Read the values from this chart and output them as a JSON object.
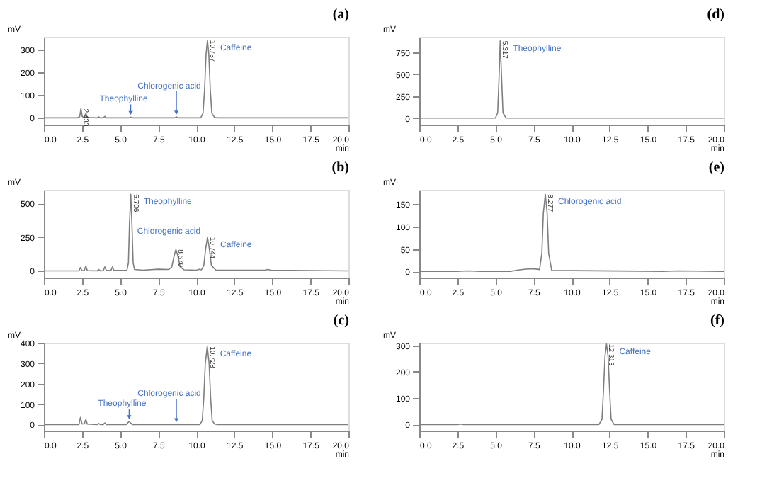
{
  "chart_data": [
    {
      "type": "line",
      "title": "(a)",
      "xlabel": "min",
      "ylabel": "mV",
      "xlim": [
        0,
        20
      ],
      "ylim": [
        -30,
        355
      ],
      "yticks": [
        0,
        100,
        200,
        300
      ],
      "xticks": [
        {
          "value": 0,
          "label": "0.0"
        },
        {
          "value": 2.5,
          "label": "2.5"
        },
        {
          "value": 5,
          "label": "5.0"
        },
        {
          "value": 7.5,
          "label": "7.5"
        },
        {
          "value": 10,
          "label": "10.0"
        },
        {
          "value": 12.5,
          "label": "12.5"
        },
        {
          "value": 15,
          "label": "15.0"
        },
        {
          "value": 17.5,
          "label": "17.5"
        },
        {
          "value": 20,
          "label": "20.0"
        }
      ],
      "x": [
        0,
        2.2,
        2.35,
        2.43,
        2.52,
        2.65,
        2.75,
        2.85,
        3.5,
        3.6,
        3.7,
        3.9,
        4.0,
        4.1,
        5.6,
        5.7,
        5.8,
        8.6,
        8.7,
        8.8,
        10.3,
        10.45,
        10.55,
        10.65,
        10.74,
        10.83,
        10.93,
        11.03,
        11.2,
        11.4,
        20
      ],
      "series": [
        {
          "color": "#7f7f7f",
          "values": [
            0,
            0,
            5,
            40,
            5,
            2,
            20,
            2,
            0,
            4,
            0,
            0,
            6,
            0,
            0,
            3,
            0,
            0,
            4,
            0,
            0,
            20,
            120,
            280,
            340,
            280,
            120,
            20,
            2,
            0,
            0
          ]
        }
      ],
      "annotations": [
        {
          "text": "2.433",
          "x": 2.43,
          "y": 40
        },
        {
          "text": "10.737",
          "x": 10.74,
          "y": 340
        },
        {
          "text": "Theophylline",
          "x": 5.7,
          "y": 3
        },
        {
          "text": "Chlorogenic acid",
          "x": 8.7,
          "y": 4
        },
        {
          "text": "Caffeine",
          "x": 10.74,
          "y": 340
        }
      ]
    },
    {
      "type": "line",
      "title": "(d)",
      "xlabel": "min",
      "ylabel": "mV",
      "xlim": [
        0,
        20
      ],
      "ylim": [
        -75,
        925
      ],
      "yticks": [
        0,
        250,
        500,
        750
      ],
      "xticks": [
        {
          "value": 0,
          "label": "0.0"
        },
        {
          "value": 2.5,
          "label": "2.5"
        },
        {
          "value": 5,
          "label": "5.0"
        },
        {
          "value": 7.5,
          "label": "7.5"
        },
        {
          "value": 10,
          "label": "10.0"
        },
        {
          "value": 12.5,
          "label": "12.5"
        },
        {
          "value": 15,
          "label": "15.0"
        },
        {
          "value": 17.5,
          "label": "17.5"
        },
        {
          "value": 20,
          "label": "20.0"
        }
      ],
      "x": [
        0,
        5.0,
        5.15,
        5.25,
        5.317,
        5.4,
        5.5,
        5.7,
        20
      ],
      "series": [
        {
          "color": "#7f7f7f",
          "values": [
            0,
            0,
            60,
            500,
            878,
            500,
            60,
            0,
            0
          ]
        }
      ],
      "annotations": [
        {
          "text": "5.317",
          "x": 5.317,
          "y": 878
        },
        {
          "text": "Theophylline",
          "x": 5.317,
          "y": 878
        }
      ]
    },
    {
      "type": "line",
      "title": "(b)",
      "xlabel": "min",
      "ylabel": "mV",
      "xlim": [
        0,
        20
      ],
      "ylim": [
        -50,
        600
      ],
      "yticks": [
        0,
        250,
        500
      ],
      "xticks": [
        {
          "value": 0,
          "label": "0.0"
        },
        {
          "value": 2.5,
          "label": "2.5"
        },
        {
          "value": 5,
          "label": "5.0"
        },
        {
          "value": 7.5,
          "label": "7.5"
        },
        {
          "value": 10,
          "label": "10.0"
        },
        {
          "value": 12.5,
          "label": "12.5"
        },
        {
          "value": 15,
          "label": "15.0"
        },
        {
          "value": 17.5,
          "label": "17.5"
        },
        {
          "value": 20,
          "label": "20.0"
        }
      ],
      "x": [
        0,
        2.3,
        2.4,
        2.5,
        2.65,
        2.75,
        2.85,
        3.5,
        3.6,
        3.7,
        3.9,
        4.0,
        4.1,
        4.4,
        4.5,
        4.6,
        5.45,
        5.55,
        5.62,
        5.706,
        5.78,
        5.86,
        5.95,
        6.5,
        7.5,
        8.2,
        8.4,
        8.55,
        8.67,
        8.8,
        8.95,
        9.2,
        10.0,
        10.1,
        10.2,
        10.35,
        10.5,
        10.62,
        10.744,
        10.87,
        11.0,
        11.3,
        14.5,
        14.7,
        14.9,
        20
      ],
      "series": [
        {
          "color": "#7f7f7f",
          "values": [
            0,
            0,
            25,
            2,
            3,
            35,
            2,
            0,
            10,
            0,
            2,
            30,
            3,
            3,
            30,
            3,
            3,
            60,
            350,
            567,
            350,
            60,
            10,
            5,
            12,
            10,
            30,
            110,
            159,
            110,
            30,
            8,
            5,
            8,
            12,
            8,
            40,
            160,
            250,
            160,
            40,
            5,
            5,
            10,
            5,
            0
          ]
        }
      ],
      "annotations": [
        {
          "text": "5.706",
          "x": 5.706,
          "y": 567
        },
        {
          "text": "8.670",
          "x": 8.67,
          "y": 159
        },
        {
          "text": "10.744",
          "x": 10.744,
          "y": 250
        },
        {
          "text": "Theophylline",
          "x": 5.706,
          "y": 567
        },
        {
          "text": "Chlorogenic acid",
          "x": 8.67,
          "y": 159
        },
        {
          "text": "Caffeine",
          "x": 10.744,
          "y": 250
        }
      ]
    },
    {
      "type": "line",
      "title": "(e)",
      "xlabel": "min",
      "ylabel": "mV",
      "xlim": [
        0,
        20
      ],
      "ylim": [
        -14,
        182
      ],
      "yticks": [
        0,
        50,
        100,
        150
      ],
      "xticks": [
        {
          "value": 0,
          "label": "0.0"
        },
        {
          "value": 2.5,
          "label": "2.5"
        },
        {
          "value": 5,
          "label": "5.0"
        },
        {
          "value": 7.5,
          "label": "7.5"
        },
        {
          "value": 10,
          "label": "10.0"
        },
        {
          "value": 12.5,
          "label": "12.5"
        },
        {
          "value": 15,
          "label": "15.0"
        },
        {
          "value": 17.5,
          "label": "17.5"
        },
        {
          "value": 20,
          "label": "20.0"
        }
      ],
      "x": [
        0,
        2.5,
        3.2,
        4.0,
        6.0,
        6.5,
        7.0,
        7.5,
        7.9,
        8.05,
        8.15,
        8.28,
        8.4,
        8.5,
        8.7,
        16,
        17,
        20
      ],
      "series": [
        {
          "color": "#7f7f7f",
          "values": [
            0,
            0,
            1,
            0,
            0,
            3,
            5,
            6,
            4,
            40,
            130,
            172,
            130,
            40,
            2,
            0,
            1,
            0
          ]
        }
      ],
      "annotations": [
        {
          "text": "8.277",
          "x": 8.28,
          "y": 172
        },
        {
          "text": "Chlorogenic acid",
          "x": 8.28,
          "y": 172
        }
      ]
    },
    {
      "type": "line",
      "title": "(c)",
      "xlabel": "min",
      "ylabel": "mV",
      "xlim": [
        0,
        20
      ],
      "ylim": [
        -30,
        400
      ],
      "yticks": [
        0,
        100,
        200,
        300,
        400
      ],
      "xticks": [
        {
          "value": 0,
          "label": "0.0"
        },
        {
          "value": 2.5,
          "label": "2.5"
        },
        {
          "value": 5,
          "label": "5.0"
        },
        {
          "value": 7.5,
          "label": "7.5"
        },
        {
          "value": 10,
          "label": "10.0"
        },
        {
          "value": 12.5,
          "label": "12.5"
        },
        {
          "value": 15,
          "label": "15.0"
        },
        {
          "value": 17.5,
          "label": "17.5"
        },
        {
          "value": 20,
          "label": "20.0"
        }
      ],
      "x": [
        0,
        2.3,
        2.4,
        2.5,
        2.65,
        2.75,
        2.85,
        3.5,
        3.6,
        3.7,
        3.9,
        4.0,
        4.1,
        5.4,
        5.6,
        5.8,
        10.25,
        10.4,
        10.5,
        10.6,
        10.728,
        10.85,
        10.95,
        11.05,
        11.2,
        11.4,
        20
      ],
      "series": [
        {
          "color": "#7f7f7f",
          "values": [
            0,
            0,
            35,
            3,
            3,
            25,
            2,
            0,
            5,
            0,
            0,
            8,
            0,
            0,
            15,
            0,
            0,
            20,
            130,
            300,
            382,
            300,
            130,
            20,
            3,
            0,
            0
          ]
        }
      ],
      "annotations": [
        {
          "text": "10.728",
          "x": 10.728,
          "y": 382
        },
        {
          "text": "Theophylline",
          "x": 5.6,
          "y": 15
        },
        {
          "text": "Chlorogenic acid",
          "x": 8.7,
          "y": 0
        },
        {
          "text": "Caffeine",
          "x": 10.728,
          "y": 382
        }
      ]
    },
    {
      "type": "line",
      "title": "(f)",
      "xlabel": "min",
      "ylabel": "mV",
      "xlim": [
        0,
        20
      ],
      "ylim": [
        -23,
        310
      ],
      "yticks": [
        0,
        100,
        200,
        300
      ],
      "xticks": [
        {
          "value": 0,
          "label": "0.0"
        },
        {
          "value": 2.5,
          "label": "2.5"
        },
        {
          "value": 5,
          "label": "5.0"
        },
        {
          "value": 7.5,
          "label": "7.5"
        },
        {
          "value": 10,
          "label": "10.0"
        },
        {
          "value": 12.5,
          "label": "12.5"
        },
        {
          "value": 15,
          "label": "15.0"
        },
        {
          "value": 17.5,
          "label": "17.5"
        },
        {
          "value": 20,
          "label": "20.0"
        }
      ],
      "x": [
        0,
        2.5,
        2.7,
        2.9,
        11.8,
        12.0,
        12.1,
        12.2,
        12.3,
        12.4,
        12.5,
        12.6,
        12.8,
        20
      ],
      "series": [
        {
          "color": "#7f7f7f",
          "values": [
            0,
            0,
            2,
            0,
            0,
            20,
            130,
            260,
            305,
            260,
            130,
            20,
            0,
            0
          ]
        }
      ],
      "annotations": [
        {
          "text": "12.313",
          "x": 12.3,
          "y": 305
        },
        {
          "text": "Caffeine",
          "x": 12.3,
          "y": 305
        }
      ]
    }
  ]
}
